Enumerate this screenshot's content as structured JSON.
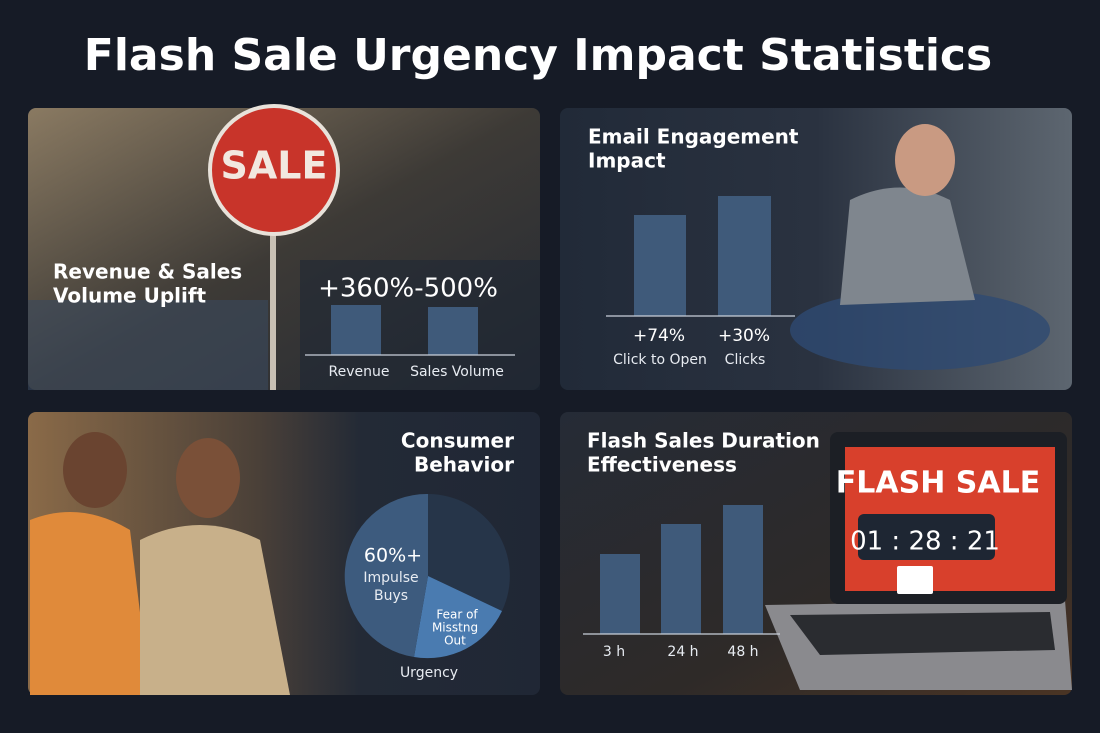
{
  "title": "Flash Sale Urgency Impact Statistics",
  "panels": [
    {
      "heading": [
        "Revenue & Sales",
        "Volume Uplift"
      ],
      "sign": "SALE",
      "headline": "+360%-500%",
      "labels": [
        "Revenue",
        "Sales Volume"
      ]
    },
    {
      "heading": [
        "Email Engagement",
        "Impact"
      ],
      "values": [
        "+74%",
        "+30%"
      ],
      "labels": [
        "Click to Open",
        "Clicks"
      ]
    },
    {
      "heading": [
        "Consumer",
        "Behavior"
      ],
      "slice_labels": [
        [
          "60%+",
          "Impulse",
          "Buys"
        ],
        [
          "Fear of",
          "Misstng",
          "Out"
        ]
      ],
      "caption": "Urgency"
    },
    {
      "heading": [
        "Flash Sales Duration",
        "Effectiveness"
      ],
      "labels": [
        "3 h",
        "24 h",
        "48 h"
      ],
      "screen_title": "FLASH SALE",
      "timer": "01 : 28 : 21"
    }
  ]
}
